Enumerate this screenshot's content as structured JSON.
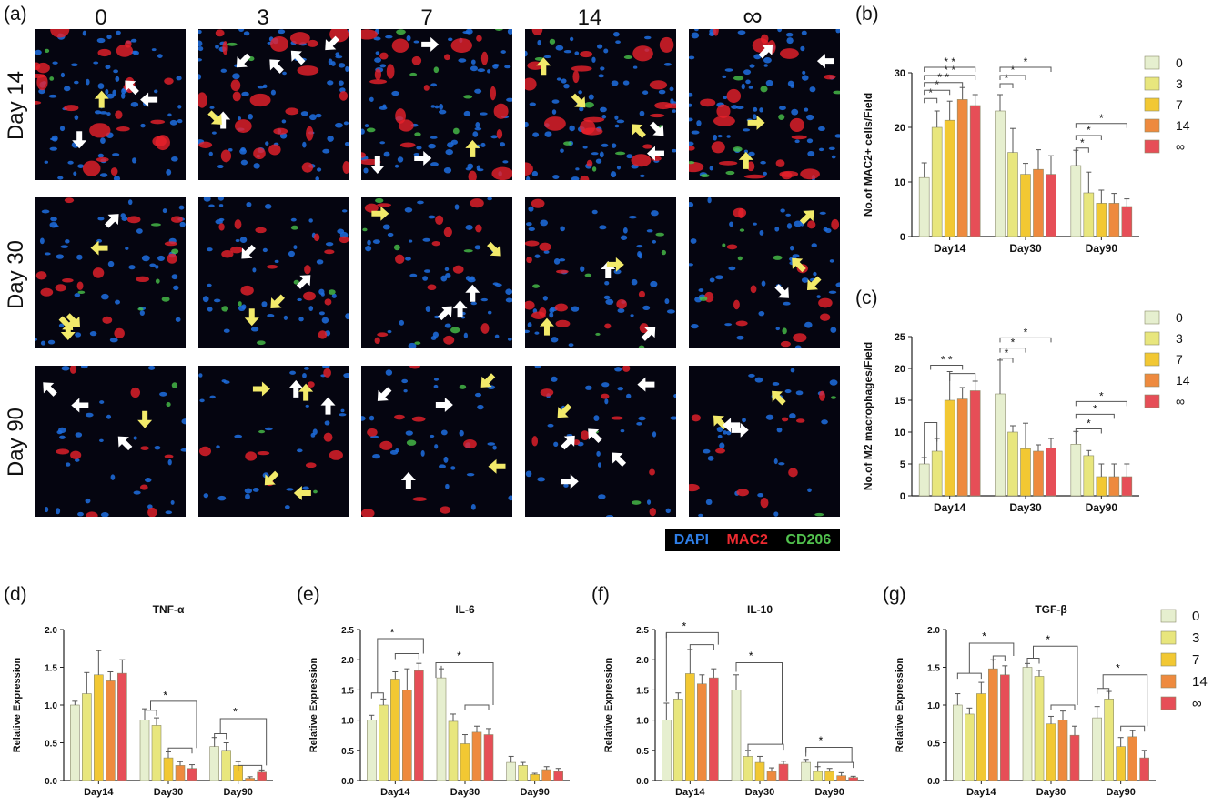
{
  "figure": {
    "panels": {
      "a": "(a)",
      "b": "(b)",
      "c": "(c)",
      "d": "(d)",
      "e": "(e)",
      "f": "(f)",
      "g": "(g)"
    },
    "columns": [
      "0",
      "3",
      "7",
      "14",
      "∞"
    ],
    "rows": [
      "Day 14",
      "Day 30",
      "Day 90"
    ],
    "stain_legend": {
      "dapi": "DAPI",
      "mac2": "MAC2",
      "cd206": "CD206"
    },
    "colors": {
      "dapi": "#1e6fe0",
      "mac2": "#e8202a",
      "cd206": "#49c24a",
      "arrow_white": "#ffffff",
      "arrow_yellow": "#f2ea6a",
      "series": [
        "#e6efcf",
        "#e8e67d",
        "#f2c833",
        "#ee8a3e",
        "#e64e57"
      ]
    },
    "arrows": [
      [
        "w",
        "w",
        "w",
        "w",
        "w"
      ],
      [
        "y",
        "w",
        "y",
        "w",
        "w"
      ],
      [
        "w",
        "y",
        "w",
        "w",
        "y"
      ]
    ],
    "series_legend": [
      "0",
      "3",
      "7",
      "14",
      "∞"
    ]
  },
  "chart_data": [
    {
      "id": "b",
      "type": "bar",
      "ylabel": "No.of MAC2+ cells/Field",
      "categories": [
        "Day14",
        "Day30",
        "Day90"
      ],
      "ylim": [
        0,
        30
      ],
      "yticks": [
        0,
        10,
        20,
        30
      ],
      "series": [
        {
          "name": "0",
          "values": [
            10.8,
            23.0,
            13.0
          ],
          "err": [
            2.7,
            3.0,
            2.8
          ]
        },
        {
          "name": "3",
          "values": [
            20.0,
            15.4,
            8.0
          ],
          "err": [
            3.0,
            4.4,
            3.8
          ]
        },
        {
          "name": "7",
          "values": [
            21.3,
            11.4,
            6.1
          ],
          "err": [
            3.5,
            2.0,
            2.4
          ]
        },
        {
          "name": "14",
          "values": [
            25.1,
            12.3,
            6.1
          ],
          "err": [
            2.2,
            3.6,
            1.8
          ]
        },
        {
          "name": "∞",
          "values": [
            24.0,
            11.4,
            5.5
          ],
          "err": [
            2.0,
            3.4,
            1.4
          ]
        }
      ],
      "annotations": [
        "*",
        "*",
        "* *",
        "* *",
        "* *",
        "*",
        "*",
        "*",
        "*",
        "*",
        "*"
      ]
    },
    {
      "id": "c",
      "type": "bar",
      "ylabel": "No.of M2 macrophages/Field",
      "categories": [
        "Day14",
        "Day30",
        "Day90"
      ],
      "ylim": [
        0,
        25
      ],
      "yticks": [
        0,
        5,
        10,
        15,
        20,
        25
      ],
      "series": [
        {
          "name": "0",
          "values": [
            5.0,
            16.0,
            8.1
          ],
          "err": [
            1.0,
            5.3,
            2.0
          ]
        },
        {
          "name": "3",
          "values": [
            7.0,
            10.0,
            6.3
          ],
          "err": [
            2.0,
            1.0,
            0.8
          ]
        },
        {
          "name": "7",
          "values": [
            15.0,
            7.4,
            3.0
          ],
          "err": [
            4.5,
            4.0,
            2.0
          ]
        },
        {
          "name": "14",
          "values": [
            15.2,
            7.0,
            3.0
          ],
          "err": [
            1.8,
            1.0,
            2.0
          ]
        },
        {
          "name": "∞",
          "values": [
            16.5,
            7.5,
            3.0
          ],
          "err": [
            1.5,
            1.5,
            2.0
          ]
        }
      ],
      "annotations": [
        "* *",
        "*",
        "*",
        "*",
        "*",
        "*",
        "*"
      ]
    },
    {
      "id": "d",
      "type": "bar",
      "title": "TNF-α",
      "ylabel": "Relative Expression",
      "categories": [
        "Day14",
        "Day30",
        "Day90"
      ],
      "ylim": [
        0,
        2.0
      ],
      "yticks": [
        "0.0",
        "0.5",
        "1.0",
        "1.5",
        "2.0"
      ],
      "series": [
        {
          "name": "0",
          "values": [
            1.0,
            0.8,
            0.45
          ],
          "err": [
            0.05,
            0.15,
            0.12
          ]
        },
        {
          "name": "3",
          "values": [
            1.15,
            0.73,
            0.4
          ],
          "err": [
            0.28,
            0.1,
            0.1
          ]
        },
        {
          "name": "7",
          "values": [
            1.4,
            0.3,
            0.2
          ],
          "err": [
            0.32,
            0.08,
            0.05
          ]
        },
        {
          "name": "14",
          "values": [
            1.32,
            0.2,
            0.03
          ],
          "err": [
            0.12,
            0.05,
            0.02
          ]
        },
        {
          "name": "∞",
          "values": [
            1.42,
            0.16,
            0.11
          ],
          "err": [
            0.18,
            0.05,
            0.03
          ]
        }
      ],
      "annotations": [
        "*",
        "*"
      ]
    },
    {
      "id": "e",
      "type": "bar",
      "title": "IL-6",
      "ylabel": "Relative Expression",
      "categories": [
        "Day14",
        "Day30",
        "Day90"
      ],
      "ylim": [
        0,
        2.5
      ],
      "yticks": [
        "0.0",
        "0.5",
        "1.0",
        "1.5",
        "2.0",
        "2.5"
      ],
      "series": [
        {
          "name": "0",
          "values": [
            1.0,
            1.7,
            0.3
          ],
          "err": [
            0.08,
            0.15,
            0.1
          ]
        },
        {
          "name": "3",
          "values": [
            1.25,
            0.98,
            0.25
          ],
          "err": [
            0.1,
            0.12,
            0.05
          ]
        },
        {
          "name": "7",
          "values": [
            1.68,
            0.61,
            0.1
          ],
          "err": [
            0.12,
            0.15,
            0.02
          ]
        },
        {
          "name": "14",
          "values": [
            1.5,
            0.8,
            0.18
          ],
          "err": [
            0.35,
            0.1,
            0.05
          ]
        },
        {
          "name": "∞",
          "values": [
            1.82,
            0.76,
            0.15
          ],
          "err": [
            0.12,
            0.1,
            0.05
          ]
        }
      ],
      "annotations": [
        "*",
        "*"
      ]
    },
    {
      "id": "f",
      "type": "bar",
      "title": "IL-10",
      "ylabel": "Relative Expression",
      "categories": [
        "Day14",
        "Day30",
        "Day90"
      ],
      "ylim": [
        0,
        2.5
      ],
      "yticks": [
        "0.0",
        "0.5",
        "1.0",
        "1.5",
        "2.0",
        "2.5"
      ],
      "series": [
        {
          "name": "0",
          "values": [
            1.0,
            1.5,
            0.3
          ],
          "err": [
            0.28,
            0.25,
            0.05
          ]
        },
        {
          "name": "3",
          "values": [
            1.35,
            0.4,
            0.15
          ],
          "err": [
            0.1,
            0.1,
            0.08
          ]
        },
        {
          "name": "7",
          "values": [
            1.77,
            0.3,
            0.15
          ],
          "err": [
            0.4,
            0.1,
            0.05
          ]
        },
        {
          "name": "14",
          "values": [
            1.6,
            0.15,
            0.08
          ],
          "err": [
            0.15,
            0.06,
            0.05
          ]
        },
        {
          "name": "∞",
          "values": [
            1.7,
            0.27,
            0.05
          ],
          "err": [
            0.15,
            0.05,
            0.02
          ]
        }
      ],
      "annotations": [
        "*",
        "*",
        "*"
      ]
    },
    {
      "id": "g",
      "type": "bar",
      "title": "TGF-β",
      "ylabel": "Relative Expression",
      "categories": [
        "Day14",
        "Day30",
        "Day90"
      ],
      "ylim": [
        0,
        2.0
      ],
      "yticks": [
        "0.0",
        "0.5",
        "1.0",
        "1.5",
        "2.0"
      ],
      "series": [
        {
          "name": "0",
          "values": [
            1.0,
            1.5,
            0.83
          ],
          "err": [
            0.15,
            0.05,
            0.15
          ]
        },
        {
          "name": "3",
          "values": [
            0.88,
            1.38,
            1.08
          ],
          "err": [
            0.08,
            0.08,
            0.1
          ]
        },
        {
          "name": "7",
          "values": [
            1.15,
            0.75,
            0.45
          ],
          "err": [
            0.15,
            0.1,
            0.12
          ]
        },
        {
          "name": "14",
          "values": [
            1.48,
            0.8,
            0.58
          ],
          "err": [
            0.12,
            0.12,
            0.08
          ]
        },
        {
          "name": "∞",
          "values": [
            1.4,
            0.6,
            0.3
          ],
          "err": [
            0.12,
            0.12,
            0.1
          ]
        }
      ],
      "annotations": [
        "*",
        "*",
        "*"
      ]
    }
  ]
}
